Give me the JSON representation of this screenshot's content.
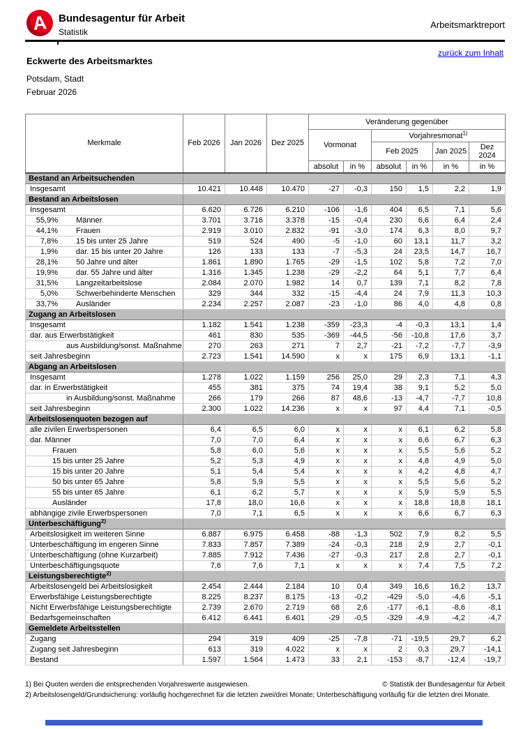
{
  "header": {
    "brand": "Bundesagentur für Arbeit",
    "brand_sub": "Statistik",
    "logo_letter": "A",
    "report_type": "Arbeitsmarktreport",
    "back_link": "zurück zum Inhalt",
    "title": "Eckwerte des Arbeitsmarktes",
    "region": "Potsdam, Stadt",
    "period": "Februar 2026"
  },
  "colors": {
    "brand_red": "#e2001a",
    "link_blue": "#0000ee",
    "section_gray": "#bdbdbd",
    "footer_bar_blue": "#3b5ec9"
  },
  "table": {
    "col_headers": {
      "merkmale": "Merkmale",
      "months": [
        "Feb 2026",
        "Jan 2026",
        "Dez 2025"
      ],
      "change_title": "Veränderung gegenüber",
      "vormonat": "Vormonat",
      "vorjahresmonat": "Vorjahresmonat",
      "vorjahresmonat_sup": "1)",
      "vj_month_1": "Feb 2025",
      "vj_month_2": "Jan 2025",
      "vj_month_3": "Dez 2024",
      "absolut": "absolut",
      "in_pct": "in %"
    },
    "sections": [
      {
        "title": "Bestand an Arbeitsuchenden",
        "sup": "",
        "rows": [
          {
            "pct": "",
            "label": "Insgesamt",
            "ind": 0,
            "v": [
              "10.421",
              "10.448",
              "10.470",
              "-27",
              "-0,3",
              "150",
              "1,5",
              "2,2",
              "1,9"
            ]
          }
        ]
      },
      {
        "title": "Bestand an Arbeitslosen",
        "sup": "",
        "rows": [
          {
            "pct": "",
            "label": "Insgesamt",
            "ind": 0,
            "v": [
              "6.620",
              "6.726",
              "6.210",
              "-106",
              "-1,6",
              "404",
              "6,5",
              "7,1",
              "5,6"
            ]
          },
          {
            "pct": "55,9%",
            "label": "Männer",
            "ind": 0,
            "v": [
              "3.701",
              "3.716",
              "3.378",
              "-15",
              "-0,4",
              "230",
              "6,6",
              "6,4",
              "2,4"
            ]
          },
          {
            "pct": "44,1%",
            "label": "Frauen",
            "ind": 0,
            "v": [
              "2.919",
              "3.010",
              "2.832",
              "-91",
              "-3,0",
              "174",
              "6,3",
              "8,0",
              "9,7"
            ]
          },
          {
            "pct": "7,8%",
            "label": "15 bis unter 25 Jahre",
            "ind": 0,
            "v": [
              "519",
              "524",
              "490",
              "-5",
              "-1,0",
              "60",
              "13,1",
              "11,7",
              "3,2"
            ]
          },
          {
            "pct": "1,9%",
            "label": "dar. 15 bis unter 20 Jahre",
            "ind": 0,
            "v": [
              "126",
              "133",
              "133",
              "-7",
              "-5,3",
              "24",
              "23,5",
              "14,7",
              "16,7"
            ]
          },
          {
            "pct": "28,1%",
            "label": "50 Jahre und älter",
            "ind": 0,
            "v": [
              "1.861",
              "1.890",
              "1.765",
              "-29",
              "-1,5",
              "102",
              "5,8",
              "7,2",
              "7,0"
            ]
          },
          {
            "pct": "19,9%",
            "label": "dar. 55 Jahre und älter",
            "ind": 0,
            "v": [
              "1.316",
              "1.345",
              "1.238",
              "-29",
              "-2,2",
              "64",
              "5,1",
              "7,7",
              "6,4"
            ]
          },
          {
            "pct": "31,5%",
            "label": "Langzeitarbeitslose",
            "ind": 0,
            "v": [
              "2.084",
              "2.070",
              "1.982",
              "14",
              "0,7",
              "139",
              "7,1",
              "8,2",
              "7,8"
            ]
          },
          {
            "pct": "5,0%",
            "label": "Schwerbehinderte Menschen",
            "ind": 0,
            "v": [
              "329",
              "344",
              "332",
              "-15",
              "-4,4",
              "24",
              "7,9",
              "11,3",
              "10,3"
            ]
          },
          {
            "pct": "33,7%",
            "label": "Ausländer",
            "ind": 0,
            "v": [
              "2.234",
              "2.257",
              "2.087",
              "-23",
              "-1,0",
              "86",
              "4,0",
              "4,8",
              "0,8"
            ]
          }
        ]
      },
      {
        "title": "Zugang an Arbeitslosen",
        "sup": "",
        "rows": [
          {
            "pct": "",
            "label": "Insgesamt",
            "ind": 0,
            "v": [
              "1.182",
              "1.541",
              "1.238",
              "-359",
              "-23,3",
              "-4",
              "-0,3",
              "13,1",
              "1,4"
            ]
          },
          {
            "pct": "",
            "label": "dar. aus Erwerbstätigkeit",
            "ind": 0,
            "v": [
              "461",
              "830",
              "535",
              "-369",
              "-44,5",
              "-56",
              "-10,8",
              "17,6",
              "3,7"
            ]
          },
          {
            "pct": "",
            "label": "aus Ausbildung/sonst. Maßnahme",
            "ind": 2,
            "v": [
              "270",
              "263",
              "271",
              "7",
              "2,7",
              "-21",
              "-7,2",
              "-7,7",
              "-3,9"
            ]
          },
          {
            "pct": "",
            "label": "seit Jahresbeginn",
            "ind": 0,
            "v": [
              "2.723",
              "1.541",
              "14.590",
              "x",
              "x",
              "175",
              "6,9",
              "13,1",
              "-1,1"
            ]
          }
        ]
      },
      {
        "title": "Abgang an Arbeitslosen",
        "sup": "",
        "rows": [
          {
            "pct": "",
            "label": "Insgesamt",
            "ind": 0,
            "v": [
              "1.278",
              "1.022",
              "1.159",
              "256",
              "25,0",
              "29",
              "2,3",
              "7,1",
              "4,3"
            ]
          },
          {
            "pct": "",
            "label": "dar. in Erwerbstätigkeit",
            "ind": 0,
            "v": [
              "455",
              "381",
              "375",
              "74",
              "19,4",
              "38",
              "9,1",
              "5,2",
              "5,0"
            ]
          },
          {
            "pct": "",
            "label": "in Ausbildung/sonst. Maßnahme",
            "ind": 2,
            "v": [
              "266",
              "179",
              "266",
              "87",
              "48,6",
              "-13",
              "-4,7",
              "-7,7",
              "10,8"
            ]
          },
          {
            "pct": "",
            "label": "seit Jahresbeginn",
            "ind": 0,
            "v": [
              "2.300",
              "1.022",
              "14.236",
              "x",
              "x",
              "97",
              "4,4",
              "7,1",
              "-0,5"
            ]
          }
        ]
      },
      {
        "title": "Arbeitslosenquoten bezogen auf",
        "sup": "",
        "rows": [
          {
            "pct": "",
            "label": "alle zivilen Erwerbspersonen",
            "ind": 0,
            "v": [
              "6,4",
              "6,5",
              "6,0",
              "x",
              "x",
              "x",
              "6,1",
              "6,2",
              "5,8"
            ]
          },
          {
            "pct": "",
            "label": "dar. Männer",
            "ind": 0,
            "v": [
              "7,0",
              "7,0",
              "6,4",
              "x",
              "x",
              "x",
              "6,6",
              "6,7",
              "6,3"
            ]
          },
          {
            "pct": "",
            "label": "Frauen",
            "ind": 1,
            "v": [
              "5,8",
              "6,0",
              "5,6",
              "x",
              "x",
              "x",
              "5,5",
              "5,6",
              "5,2"
            ]
          },
          {
            "pct": "",
            "label": "15 bis unter 25 Jahre",
            "ind": 1,
            "v": [
              "5,2",
              "5,3",
              "4,9",
              "x",
              "x",
              "x",
              "4,8",
              "4,9",
              "5,0"
            ]
          },
          {
            "pct": "",
            "label": "15 bis unter 20 Jahre",
            "ind": 1,
            "v": [
              "5,1",
              "5,4",
              "5,4",
              "x",
              "x",
              "x",
              "4,2",
              "4,8",
              "4,7"
            ]
          },
          {
            "pct": "",
            "label": "50 bis unter 65 Jahre",
            "ind": 1,
            "v": [
              "5,8",
              "5,9",
              "5,5",
              "x",
              "x",
              "x",
              "5,5",
              "5,6",
              "5,2"
            ]
          },
          {
            "pct": "",
            "label": "55 bis unter 65 Jahre",
            "ind": 1,
            "v": [
              "6,1",
              "6,2",
              "5,7",
              "x",
              "x",
              "x",
              "5,9",
              "5,9",
              "5,5"
            ]
          },
          {
            "pct": "",
            "label": "Ausländer",
            "ind": 1,
            "v": [
              "17,8",
              "18,0",
              "16,6",
              "x",
              "x",
              "x",
              "18,8",
              "18,8",
              "18,1"
            ]
          },
          {
            "pct": "",
            "label": "abhängige zivile Erwerbspersonen",
            "ind": 0,
            "v": [
              "7,0",
              "7,1",
              "6,5",
              "x",
              "x",
              "x",
              "6,6",
              "6,7",
              "6,3"
            ]
          }
        ]
      },
      {
        "title": "Unterbeschäftigung",
        "sup": "2)",
        "rows": [
          {
            "pct": "",
            "label": "Arbeitslosigkeit im weiteren Sinne",
            "ind": 0,
            "v": [
              "6.887",
              "6.975",
              "6.458",
              "-88",
              "-1,3",
              "502",
              "7,9",
              "8,2",
              "5,5"
            ]
          },
          {
            "pct": "",
            "label": "Unterbeschäftigung im engeren Sinne",
            "ind": 0,
            "v": [
              "7.833",
              "7.857",
              "7.389",
              "-24",
              "-0,3",
              "218",
              "2,9",
              "2,7",
              "-0,1"
            ]
          },
          {
            "pct": "",
            "label": "Unterbeschäftigung (ohne Kurzarbeit)",
            "ind": 0,
            "v": [
              "7.885",
              "7.912",
              "7.436",
              "-27",
              "-0,3",
              "217",
              "2,8",
              "2,7",
              "-0,1"
            ]
          },
          {
            "pct": "",
            "label": "Unterbeschäftigungsquote",
            "ind": 0,
            "v": [
              "7,6",
              "7,6",
              "7,1",
              "x",
              "x",
              "x",
              "7,4",
              "7,5",
              "7,2"
            ]
          }
        ]
      },
      {
        "title": "Leistungsberechtigte",
        "sup": "2)",
        "rows": [
          {
            "pct": "",
            "label": "Arbeitslosengeld bei Arbeitslosigkeit",
            "ind": 0,
            "v": [
              "2.454",
              "2.444",
              "2.184",
              "10",
              "0,4",
              "349",
              "16,6",
              "16,2",
              "13,7"
            ]
          },
          {
            "pct": "",
            "label": "Erwerbsfähige Leistungsberechtigte",
            "ind": 0,
            "v": [
              "8.225",
              "8.237",
              "8.175",
              "-13",
              "-0,2",
              "-429",
              "-5,0",
              "-4,6",
              "-5,1"
            ]
          },
          {
            "pct": "",
            "label": "Nicht Erwerbsfähige Leistungsberechtigte",
            "ind": 0,
            "v": [
              "2.739",
              "2.670",
              "2.719",
              "68",
              "2,6",
              "-177",
              "-6,1",
              "-8,6",
              "-8,1"
            ]
          },
          {
            "pct": "",
            "label": "Bedarfsgemeinschaften",
            "ind": 0,
            "v": [
              "6.412",
              "6.441",
              "6.401",
              "-29",
              "-0,5",
              "-329",
              "-4,9",
              "-4,2",
              "-4,7"
            ]
          }
        ]
      },
      {
        "title": "Gemeldete Arbeitsstellen",
        "sup": "",
        "rows": [
          {
            "pct": "",
            "label": "Zugang",
            "ind": 0,
            "v": [
              "294",
              "319",
              "409",
              "-25",
              "-7,8",
              "-71",
              "-19,5",
              "29,7",
              "6,2"
            ]
          },
          {
            "pct": "",
            "label": "Zugang seit Jahresbeginn",
            "ind": 0,
            "v": [
              "613",
              "319",
              "4.022",
              "x",
              "x",
              "2",
              "0,3",
              "29,7",
              "-14,1"
            ]
          },
          {
            "pct": "",
            "label": "Bestand",
            "ind": 0,
            "v": [
              "1.597",
              "1.564",
              "1.473",
              "33",
              "2,1",
              "-153",
              "-8,7",
              "-12,4",
              "-19,7"
            ]
          }
        ]
      }
    ]
  },
  "footnotes": [
    {
      "mark": "1)",
      "text": "Bei Quoten werden die entsprechenden Vorjahreswerte ausgewiesen."
    },
    {
      "mark": "2)",
      "text": "Arbeitslosengeld/Grundsicherung: vorläufig hochgerechnet für die letzten zwei/drei Monate; Unterbeschäftigung vorläufig für die letzten drei Monate."
    }
  ],
  "copyright": "© Statistik der Bundesagentur für Arbeit"
}
